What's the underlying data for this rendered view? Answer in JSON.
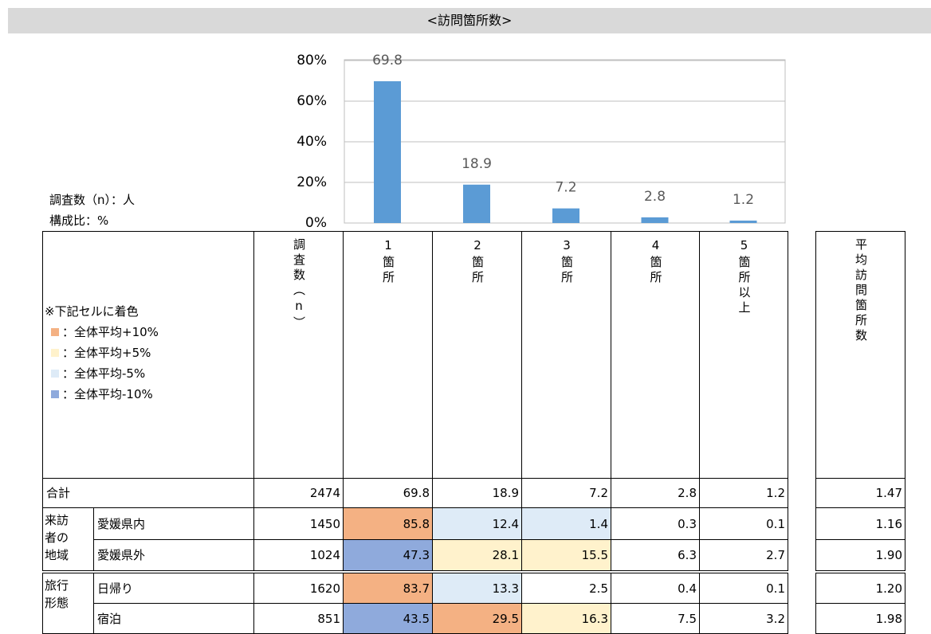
{
  "title": "<訪問箇所数>",
  "chart_data": {
    "type": "bar",
    "categories": [
      "1箇所",
      "2箇所",
      "3箇所",
      "4箇所",
      "5箇所以上"
    ],
    "values": [
      69.8,
      18.9,
      7.2,
      2.8,
      1.2
    ],
    "color": "#5b9bd5",
    "ylim": [
      0,
      80
    ],
    "yticks": [
      {
        "value": 0,
        "label": "0%"
      },
      {
        "value": 20,
        "label": "20%"
      },
      {
        "value": 40,
        "label": "40%"
      },
      {
        "value": 60,
        "label": "60%"
      },
      {
        "value": 80,
        "label": "80%"
      }
    ],
    "grid": true
  },
  "notes": [
    "調査数（n）：人",
    "構成比：%"
  ],
  "legend": {
    "title": "※下記セルに着色",
    "items": [
      {
        "label": "：全体平均+10%",
        "color": "#f4b183"
      },
      {
        "label": "：全体平均+5%",
        "color": "#fff2cc"
      },
      {
        "label": "：全体平均-5%",
        "color": "#deebf7"
      },
      {
        "label": "：全体平均-10%",
        "color": "#8faadc"
      }
    ]
  },
  "table": {
    "headers": {
      "n": "調査数（n）",
      "columns": [
        "1箇所",
        "2箇所",
        "3箇所",
        "4箇所",
        "5箇所以上"
      ],
      "avg": "平均訪問箇所数"
    },
    "total": {
      "label": "合計",
      "n": "2474",
      "values": [
        "69.8",
        "18.9",
        "7.2",
        "2.8",
        "1.2"
      ],
      "colors": [
        null,
        null,
        null,
        null,
        null
      ],
      "avg": "1.47"
    },
    "groups": [
      {
        "label": "来訪者の地域",
        "rows": [
          {
            "label": "愛媛県内",
            "n": "1450",
            "values": [
              "85.8",
              "12.4",
              "1.4",
              "0.3",
              "0.1"
            ],
            "colors": [
              "#f4b183",
              "#deebf7",
              "#deebf7",
              null,
              null
            ],
            "avg": "1.16"
          },
          {
            "label": "愛媛県外",
            "n": "1024",
            "values": [
              "47.3",
              "28.1",
              "15.5",
              "6.3",
              "2.7"
            ],
            "colors": [
              "#8faadc",
              "#fff2cc",
              "#fff2cc",
              null,
              null
            ],
            "avg": "1.90"
          }
        ]
      },
      {
        "label": "旅行形態",
        "rows": [
          {
            "label": "日帰り",
            "n": "1620",
            "values": [
              "83.7",
              "13.3",
              "2.5",
              "0.4",
              "0.1"
            ],
            "colors": [
              "#f4b183",
              "#deebf7",
              null,
              null,
              null
            ],
            "avg": "1.20"
          },
          {
            "label": "宿泊",
            "n": "851",
            "values": [
              "43.5",
              "29.5",
              "16.3",
              "7.5",
              "3.2"
            ],
            "colors": [
              "#8faadc",
              "#f4b183",
              "#fff2cc",
              null,
              null
            ],
            "avg": "1.98"
          }
        ]
      }
    ]
  }
}
